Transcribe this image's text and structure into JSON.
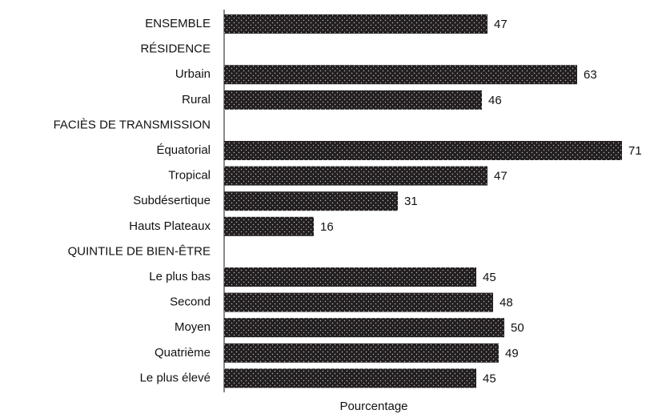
{
  "chart_data": {
    "type": "hbar",
    "categories": [
      "ENSEMBLE",
      "RÉSIDENCE",
      "Urbain",
      "Rural",
      "FACIÈS DE TRANSMISSION",
      "Équatorial",
      "Tropical",
      "Subdésertique",
      "Hauts Plateaux",
      "QUINTILE DE BIEN-ÊTRE",
      "Le plus bas",
      "Second",
      "Moyen",
      "Quatrième",
      "Le plus élevé"
    ],
    "values": [
      47,
      null,
      63,
      46,
      null,
      71,
      47,
      31,
      16,
      null,
      45,
      48,
      50,
      49,
      45
    ],
    "color": "#231f20",
    "xlim": [
      0,
      78
    ],
    "xlabel": "Pourcentage"
  }
}
